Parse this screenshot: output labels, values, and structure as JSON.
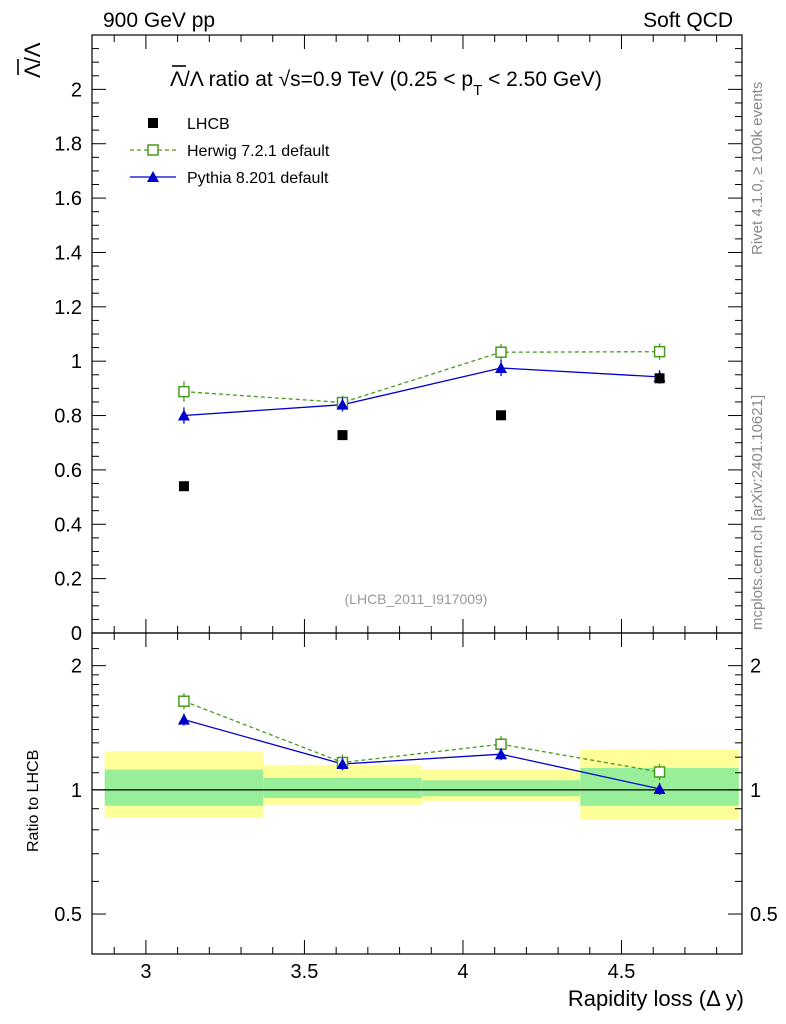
{
  "header": {
    "left": "900 GeV pp",
    "right": "Soft QCD"
  },
  "side_text": {
    "rivet": "Rivet 4.1.0, ≥ 100k events",
    "mcplots": "mcplots.cern.ch [arXiv:2401.10621]"
  },
  "chart_data": [
    {
      "panel": "main",
      "type": "scatter",
      "title": "Λ̅/Λ ratio at √s=0.9 TeV (0.25 < pT < 2.50 GeV)",
      "title_parts": {
        "lead": "Λ",
        "mid": "/Λ ratio at ",
        "sqrt": "√",
        "s": "s=0.9 TeV (0.25 < p",
        "sub": "T",
        "tail": " < 2.50 GeV)"
      },
      "ylabel": "Λ/Λ",
      "xlim": [
        2.83,
        4.88
      ],
      "ylim": [
        0,
        2.2
      ],
      "yticks": [
        "0",
        "0.2",
        "0.4",
        "0.6",
        "0.8",
        "1",
        "1.2",
        "1.4",
        "1.6",
        "1.8",
        "2"
      ],
      "analysis_label": "(LHCB_2011_I917009)",
      "series": [
        {
          "name": "LHCB",
          "style": "data",
          "color": "#000000",
          "x": [
            3.12,
            3.62,
            4.12,
            4.62
          ],
          "values": [
            0.54,
            0.728,
            0.801,
            0.937
          ]
        },
        {
          "name": "Herwig 7.2.1 default",
          "style": "dashed-open-square",
          "color": "#4a9a1e",
          "x": [
            3.12,
            3.62,
            4.12,
            4.62
          ],
          "values": [
            0.888,
            0.848,
            1.033,
            1.035
          ],
          "errors": [
            0.038,
            0.025,
            0.03,
            0.03
          ]
        },
        {
          "name": "Pythia 8.201 default",
          "style": "solid-triangle",
          "color": "#0000cc",
          "x": [
            3.12,
            3.62,
            4.12,
            4.62
          ],
          "values": [
            0.8,
            0.84,
            0.975,
            0.942
          ],
          "errors": [
            0.03,
            0.025,
            0.03,
            0.025
          ]
        }
      ]
    },
    {
      "panel": "ratio",
      "type": "line",
      "ylabel": "Ratio to LHCB",
      "xlabel": "Rapidity loss (Δ y)",
      "ylim": [
        0.4,
        2.4
      ],
      "yscale": "log",
      "yticks": [
        "0.5",
        "1",
        "2"
      ],
      "xticks": [
        "3",
        "3.5",
        "4",
        "4.5"
      ],
      "bands": [
        {
          "x": [
            2.87,
            3.37
          ],
          "yellow": [
            0.855,
            1.24
          ],
          "green": [
            0.915,
            1.12
          ]
        },
        {
          "x": [
            3.37,
            3.87
          ],
          "yellow": [
            0.92,
            1.15
          ],
          "green": [
            0.955,
            1.07
          ]
        },
        {
          "x": [
            3.87,
            4.37
          ],
          "yellow": [
            0.94,
            1.12
          ],
          "green": [
            0.965,
            1.055
          ]
        },
        {
          "x": [
            4.37,
            4.87
          ],
          "yellow": [
            0.845,
            1.25
          ],
          "green": [
            0.915,
            1.13
          ]
        }
      ],
      "series": [
        {
          "name": "Herwig 7.2.1 default",
          "color": "#4a9a1e",
          "x": [
            3.12,
            3.62,
            4.12,
            4.62
          ],
          "values": [
            1.64,
            1.165,
            1.29,
            1.105
          ]
        },
        {
          "name": "Pythia 8.201 default",
          "color": "#0000cc",
          "x": [
            3.12,
            3.62,
            4.12,
            4.62
          ],
          "values": [
            1.48,
            1.155,
            1.22,
            1.005
          ]
        }
      ]
    }
  ]
}
